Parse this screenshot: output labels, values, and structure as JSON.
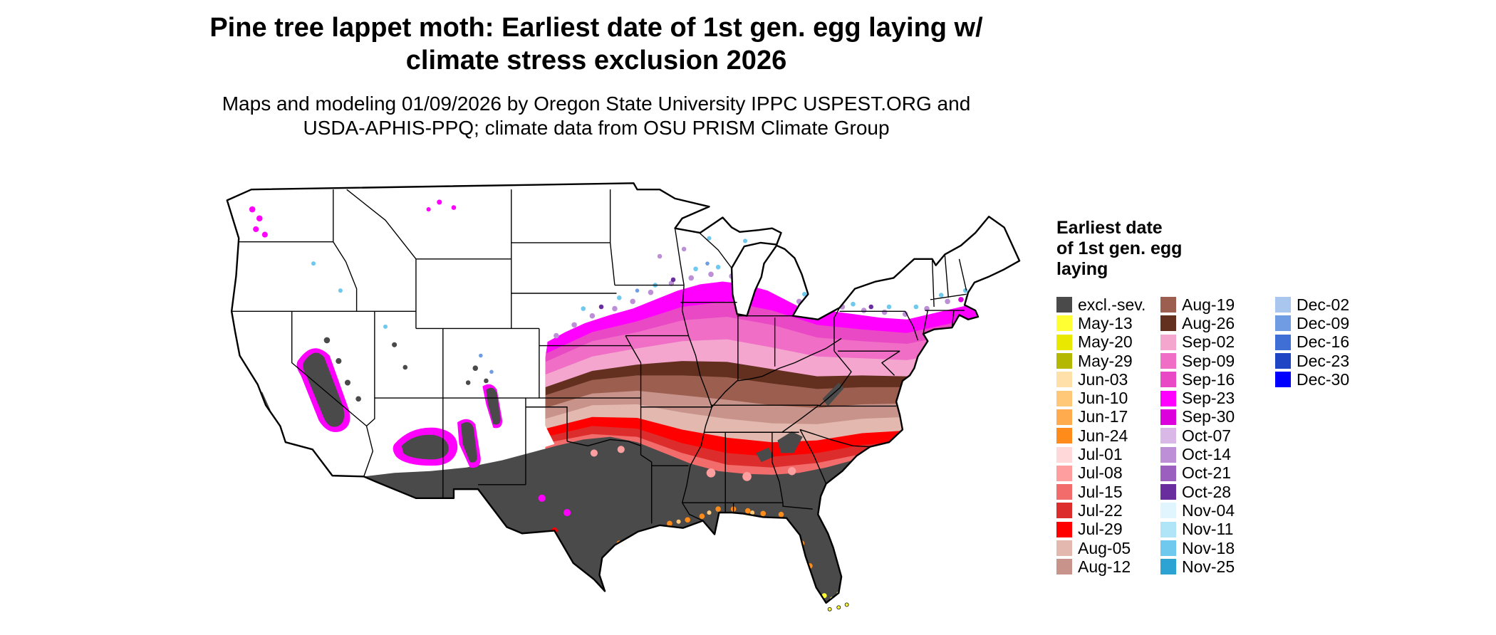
{
  "title": {
    "line1": "Pine tree lappet moth: Earliest date of 1st gen. egg laying w/",
    "line2": "climate stress exclusion 2026"
  },
  "subtitle": {
    "line1": "Maps and modeling 01/09/2026 by Oregon State University IPPC USPEST.ORG and",
    "line2": "USDA-APHIS-PPQ; climate data from OSU PRISM Climate Group"
  },
  "legend": {
    "title_lines": [
      "Earliest date",
      "of 1st gen. egg",
      "laying"
    ],
    "columns": [
      {
        "entries": [
          {
            "label": "excl.-sev.",
            "color": "#4a4a4a"
          },
          {
            "label": "May-13",
            "color": "#ffff33"
          },
          {
            "label": "May-20",
            "color": "#e8e800"
          },
          {
            "label": "May-29",
            "color": "#b5b800"
          },
          {
            "label": "Jun-03",
            "color": "#ffe0a8"
          },
          {
            "label": "Jun-10",
            "color": "#ffc878"
          },
          {
            "label": "Jun-17",
            "color": "#ffab4e"
          },
          {
            "label": "Jun-24",
            "color": "#ff8c1a"
          },
          {
            "label": "Jul-01",
            "color": "#ffd9d9"
          },
          {
            "label": "Jul-08",
            "color": "#ff9e9e"
          },
          {
            "label": "Jul-15",
            "color": "#f26c6c"
          },
          {
            "label": "Jul-22",
            "color": "#dd2c2c"
          },
          {
            "label": "Jul-29",
            "color": "#ff0000"
          },
          {
            "label": "Aug-05",
            "color": "#e3b8ae"
          },
          {
            "label": "Aug-12",
            "color": "#c7938a"
          }
        ]
      },
      {
        "entries": [
          {
            "label": "Aug-19",
            "color": "#9c5f4f"
          },
          {
            "label": "Aug-26",
            "color": "#63301f"
          },
          {
            "label": "Sep-02",
            "color": "#f4a6cf"
          },
          {
            "label": "Sep-09",
            "color": "#f06ec6"
          },
          {
            "label": "Sep-16",
            "color": "#ea49c5"
          },
          {
            "label": "Sep-23",
            "color": "#ff00ff"
          },
          {
            "label": "Sep-30",
            "color": "#dc00dc"
          },
          {
            "label": "Oct-07",
            "color": "#d9b8e8"
          },
          {
            "label": "Oct-14",
            "color": "#bc8fd6"
          },
          {
            "label": "Oct-21",
            "color": "#9b5fc0"
          },
          {
            "label": "Oct-28",
            "color": "#6a2d9e"
          },
          {
            "label": "Nov-04",
            "color": "#e0f5fd"
          },
          {
            "label": "Nov-11",
            "color": "#b0e4f7"
          },
          {
            "label": "Nov-18",
            "color": "#6fc9ee"
          },
          {
            "label": "Nov-25",
            "color": "#2da3d4"
          }
        ]
      },
      {
        "entries": [
          {
            "label": "Dec-02",
            "color": "#a9c6ef"
          },
          {
            "label": "Dec-09",
            "color": "#6f9ce3"
          },
          {
            "label": "Dec-16",
            "color": "#3f6fd4"
          },
          {
            "label": "Dec-23",
            "color": "#1f45c4"
          },
          {
            "label": "Dec-30",
            "color": "#0000ff"
          }
        ]
      }
    ]
  },
  "map": {
    "area": "Contiguous United States with state boundaries",
    "no_data_color": "#ffffff",
    "band_order_south_to_north": [
      "excl.-sev.",
      "Jul-15",
      "Jul-22",
      "Jul-29",
      "Aug-05",
      "Aug-12",
      "Aug-19",
      "Aug-26",
      "Sep-02",
      "Sep-09",
      "Sep-16",
      "Sep-23",
      "Oct/Nov speckles",
      "white (no egg laying date)"
    ]
  }
}
